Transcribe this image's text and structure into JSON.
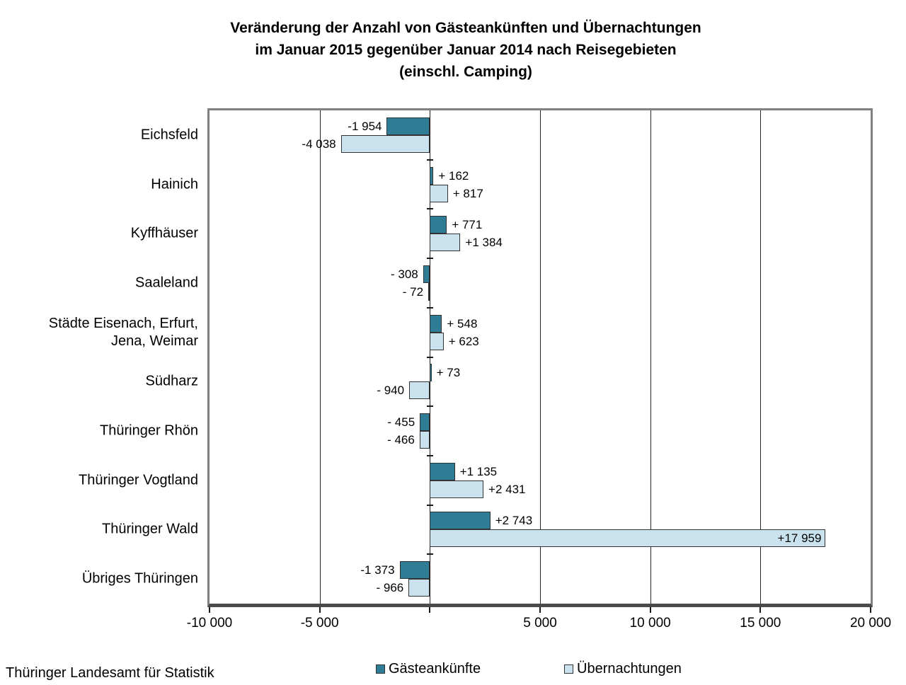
{
  "title": {
    "line1": "Veränderung der Anzahl von Gästeankünften und Übernachtungen",
    "line2": "im Januar 2015 gegenüber Januar 2014 nach Reisegebieten",
    "line3": "(einschl. Camping)"
  },
  "footer": {
    "source": "Thüringer Landesamt für Statistik"
  },
  "legend": [
    {
      "label": "Gästeankünfte",
      "color": "#2E7C96"
    },
    {
      "label": "Übernachtungen",
      "color": "#C9E2ED"
    }
  ],
  "chart_data": {
    "type": "bar",
    "orientation": "horizontal",
    "title": "Veränderung der Anzahl von Gästeankünften und Übernachtungen im Januar 2015 gegenüber Januar 2014 nach Reisegebieten (einschl. Camping)",
    "categories": [
      "Eichsfeld",
      "Hainich",
      "Kyffhäuser",
      "Saaleland",
      "Städte Eisenach, Erfurt,\nJena, Weimar",
      "Südharz",
      "Thüringer Rhön",
      "Thüringer Vogtland",
      "Thüringer Wald",
      "Übriges Thüringen"
    ],
    "series": [
      {
        "name": "Gästeankünfte",
        "color": "#2E7C96",
        "values": [
          -1954,
          162,
          771,
          -308,
          548,
          73,
          -455,
          1135,
          2743,
          -1373
        ],
        "labels": [
          "-1 954",
          "+ 162",
          "+ 771",
          "- 308",
          "+ 548",
          "+ 73",
          "- 455",
          "+1 135",
          "+2 743",
          "-1 373"
        ]
      },
      {
        "name": "Übernachtungen",
        "color": "#C9E2ED",
        "values": [
          -4038,
          817,
          1384,
          -72,
          623,
          -940,
          -466,
          2431,
          17959,
          -966
        ],
        "labels": [
          "-4 038",
          "+ 817",
          "+1 384",
          "- 72",
          "+ 623",
          "- 940",
          "- 466",
          "+2 431",
          "+17 959",
          "- 966"
        ]
      }
    ],
    "xlim": [
      -10000,
      20000
    ],
    "x_ticks": [
      -10000,
      -5000,
      0,
      5000,
      10000,
      15000,
      20000
    ],
    "x_tick_labels": [
      "-10 000",
      "-5 000",
      "",
      "5 000",
      "10 000",
      "15 000",
      "20 000"
    ],
    "gridlines": [
      -5000,
      5000,
      10000,
      15000
    ],
    "grid": true,
    "legend_position": "bottom"
  }
}
